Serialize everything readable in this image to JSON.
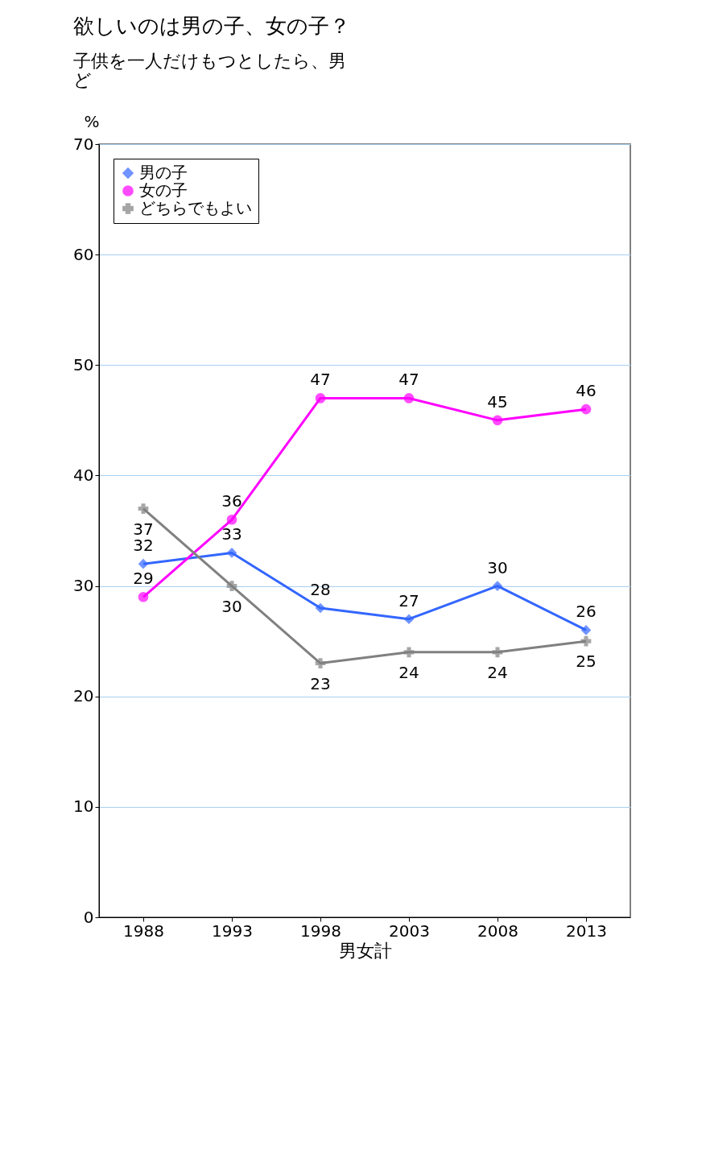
{
  "chart_data": {
    "type": "line",
    "title": "欲しいのは男の子、女の子？",
    "subtitle": [
      "子供を一人だけもつとしたら、男",
      "ど"
    ],
    "categories": [
      "1988",
      "1993",
      "1998",
      "2003",
      "2008",
      "2013"
    ],
    "xlabel": "男女計",
    "ylabel": "%",
    "series": [
      {
        "name": "男の子",
        "color": "#3366ff",
        "marker": "diamond",
        "values": [
          32,
          33,
          28,
          27,
          30,
          26
        ]
      },
      {
        "name": "女の子",
        "color": "#ff00ff",
        "marker": "circle",
        "values": [
          29,
          36,
          47,
          47,
          45,
          46
        ]
      },
      {
        "name": "どちらでもよい",
        "color": "#808080",
        "marker": "cross",
        "values": [
          37,
          30,
          23,
          24,
          24,
          25
        ]
      }
    ],
    "ylim": [
      0,
      70
    ],
    "yticks": [
      0,
      10,
      20,
      30,
      40,
      50,
      60,
      70
    ],
    "grid": "y",
    "legend": "top left",
    "data_labels": true,
    "line_style": "solid"
  }
}
